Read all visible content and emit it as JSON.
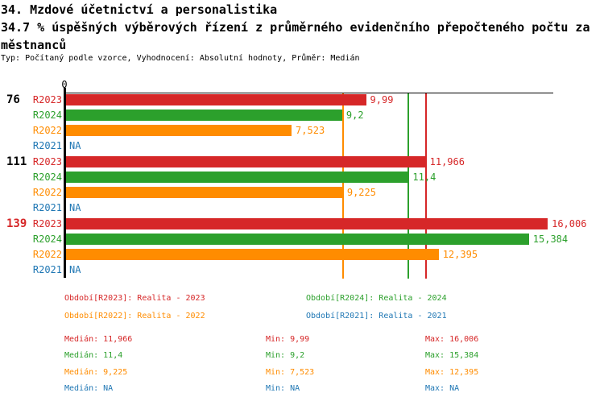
{
  "header": {
    "title": "34. Mzdové účetnictví a personalistika",
    "subtitle_line1": "34.7 % úspěšných výběrových řízení z průměrného evidenčního přepočteného počtu za",
    "subtitle_line2": "městnanců",
    "meta": "Typ: Počítaný podle vzorce, Vyhodnocení: Absolutní hodnoty, Průměr: Medián"
  },
  "colors": {
    "R2023": "#d62728",
    "R2024": "#2ca02c",
    "R2022": "#ff8c00",
    "R2021": "#1f77b4",
    "axis": "#000000",
    "group_default": "#000000",
    "group_highlight": "#d62728"
  },
  "chart_data": {
    "type": "bar",
    "orientation": "horizontal",
    "title": "34.7 % úspěšných výběrových řízení z průměrného evidenčního přepočteného počtu zaměstnanců",
    "xlabel": "",
    "ylabel": "",
    "xlim": [
      0,
      16.19
    ],
    "x_tick_labels": [
      "0"
    ],
    "grid": false,
    "series_order": [
      "R2023",
      "R2024",
      "R2022",
      "R2021"
    ],
    "groups": [
      {
        "label": "76",
        "label_color": "#000000",
        "bars": [
          {
            "series": "R2023",
            "value": 9.99,
            "display": "9,99"
          },
          {
            "series": "R2024",
            "value": 9.2,
            "display": "9,2"
          },
          {
            "series": "R2022",
            "value": 7.523,
            "display": "7,523"
          },
          {
            "series": "R2021",
            "value": null,
            "display": "NA"
          }
        ]
      },
      {
        "label": "111",
        "label_color": "#000000",
        "bars": [
          {
            "series": "R2023",
            "value": 11.966,
            "display": "11,966"
          },
          {
            "series": "R2024",
            "value": 11.4,
            "display": "11,4"
          },
          {
            "series": "R2022",
            "value": 9.225,
            "display": "9,225"
          },
          {
            "series": "R2021",
            "value": null,
            "display": "NA"
          }
        ]
      },
      {
        "label": "139",
        "label_color": "#d62728",
        "bars": [
          {
            "series": "R2023",
            "value": 16.006,
            "display": "16,006"
          },
          {
            "series": "R2024",
            "value": 15.384,
            "display": "15,384"
          },
          {
            "series": "R2022",
            "value": 12.395,
            "display": "12,395"
          },
          {
            "series": "R2021",
            "value": null,
            "display": "NA"
          }
        ]
      }
    ],
    "reference_lines": [
      {
        "series": "R2023",
        "value": 11.966,
        "meaning": "Medián R2023"
      },
      {
        "series": "R2024",
        "value": 11.4,
        "meaning": "Medián R2024"
      },
      {
        "series": "R2022",
        "value": 9.225,
        "meaning": "Medián R2022"
      }
    ]
  },
  "legend": {
    "items": [
      {
        "series": "R2023",
        "label": "Období[R2023]: Realita - 2023"
      },
      {
        "series": "R2024",
        "label": "Období[R2024]: Realita - 2024"
      },
      {
        "series": "R2022",
        "label": "Období[R2022]: Realita - 2022"
      },
      {
        "series": "R2021",
        "label": "Období[R2021]: Realita - 2021"
      }
    ]
  },
  "stats": {
    "labels": {
      "median": "Medián",
      "min": "Min",
      "max": "Max"
    },
    "rows": [
      {
        "series": "R2023",
        "median": "11,966",
        "min": "9,99",
        "max": "16,006"
      },
      {
        "series": "R2024",
        "median": "11,4",
        "min": "9,2",
        "max": "15,384"
      },
      {
        "series": "R2022",
        "median": "9,225",
        "min": "7,523",
        "max": "12,395"
      },
      {
        "series": "R2021",
        "median": "NA",
        "min": "NA",
        "max": "NA"
      }
    ]
  }
}
